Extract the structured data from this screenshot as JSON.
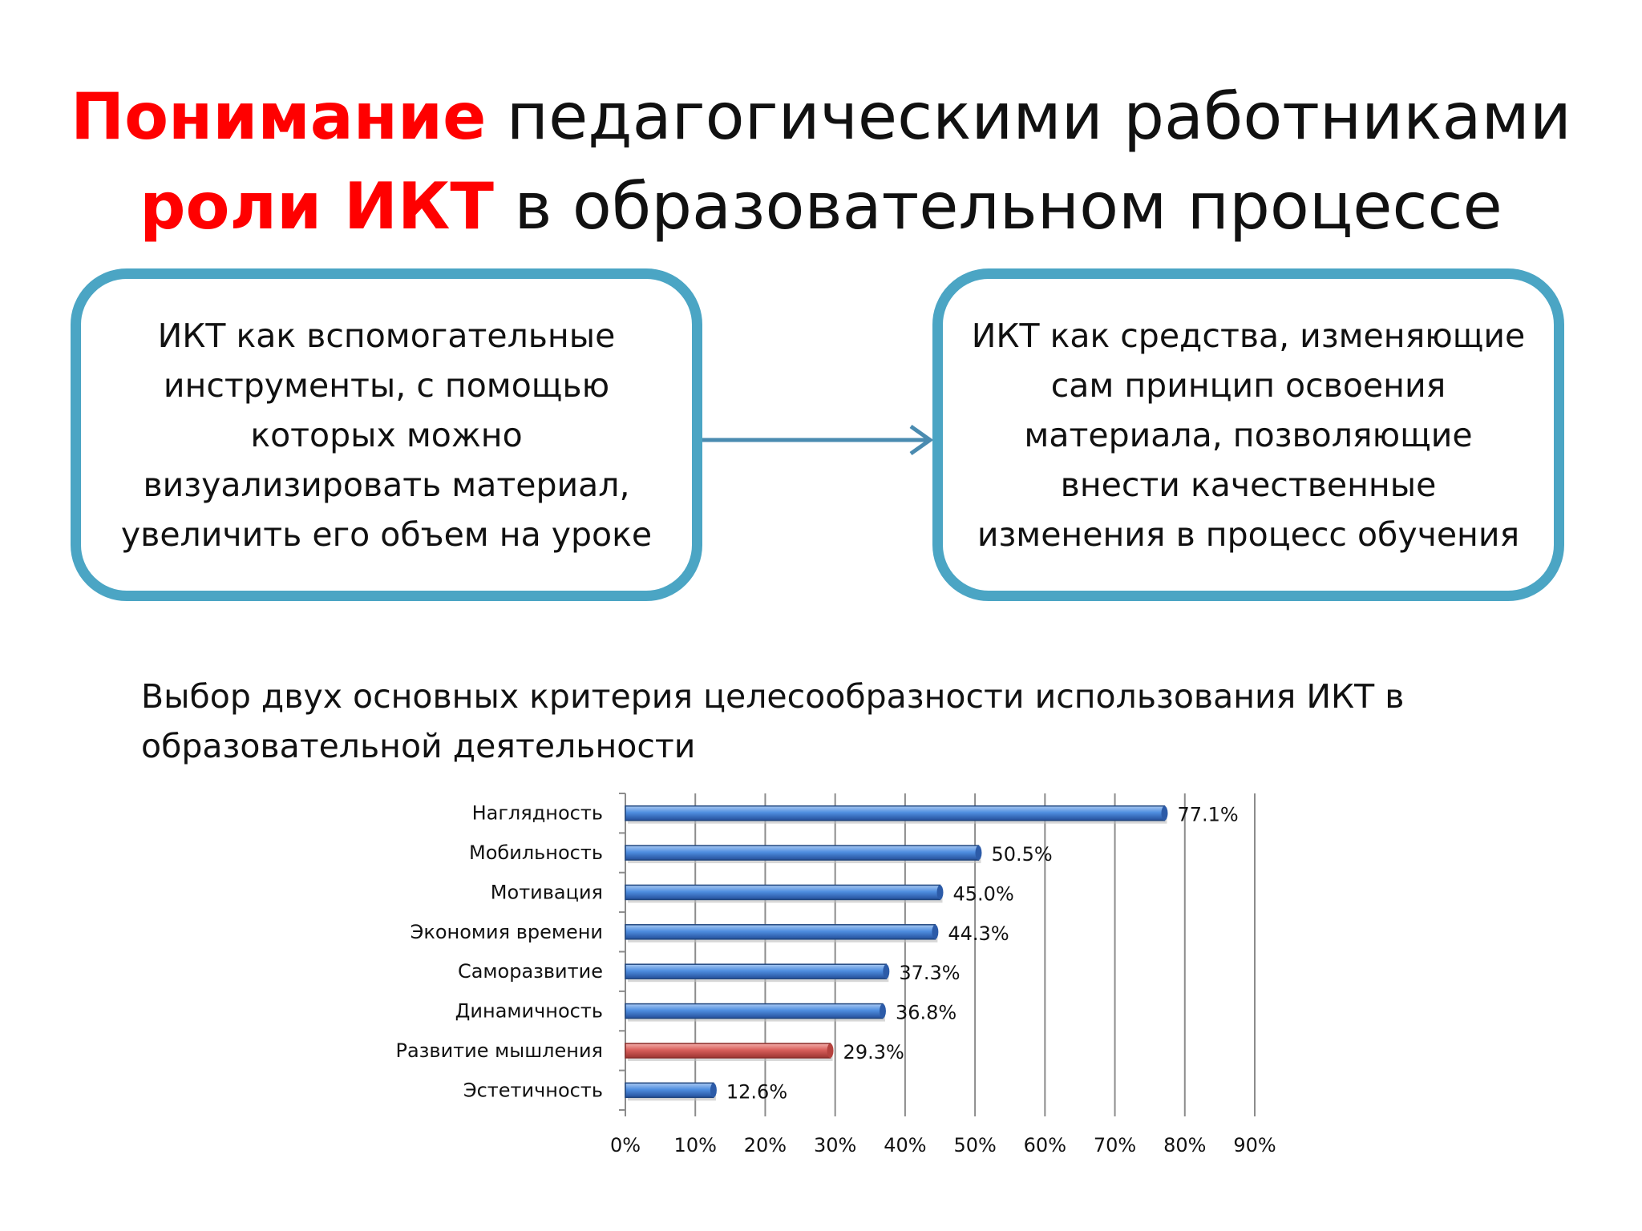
{
  "title": {
    "line1_accent": "Понимание",
    "line1_rest": " педагогическими работниками",
    "line2_accent": "роли ИКТ",
    "line2_rest": " в образовательном процессе"
  },
  "boxes": {
    "left": "ИКТ как вспомогательные инструменты, с помощью которых можно визуализировать материал, увеличить его объем на уроке",
    "right": "ИКТ как средства, изменяющие сам принцип освоения материала, позволяющие внести качественные изменения в процесс обучения"
  },
  "subtitle": "Выбор двух основных критерия целесообразности использования ИКТ в образовательной деятельности",
  "colors": {
    "accent": "#ff0000",
    "box_border": "#4ba5c4",
    "arrow": "#4a8bb0",
    "bar_blue": "#3f7fd1",
    "bar_red": "#d9605c"
  },
  "chart_data": {
    "type": "bar",
    "orientation": "horizontal",
    "categories": [
      "Наглядность",
      "Мобильность",
      "Мотивация",
      "Экономия времени",
      "Саморазвитие",
      "Динамичность",
      "Развитие мышления",
      "Эстетичность"
    ],
    "values": [
      77.1,
      50.5,
      45.0,
      44.3,
      37.3,
      36.8,
      29.3,
      12.6
    ],
    "value_labels": [
      "77.1%",
      "50.5%",
      "45.0%",
      "44.3%",
      "37.3%",
      "36.8%",
      "29.3%",
      "12.6%"
    ],
    "highlight_index": 6,
    "xlim": [
      0,
      90
    ],
    "xticks": [
      "0%",
      "10%",
      "20%",
      "30%",
      "40%",
      "50%",
      "60%",
      "70%",
      "80%",
      "90%"
    ],
    "grid": true
  }
}
